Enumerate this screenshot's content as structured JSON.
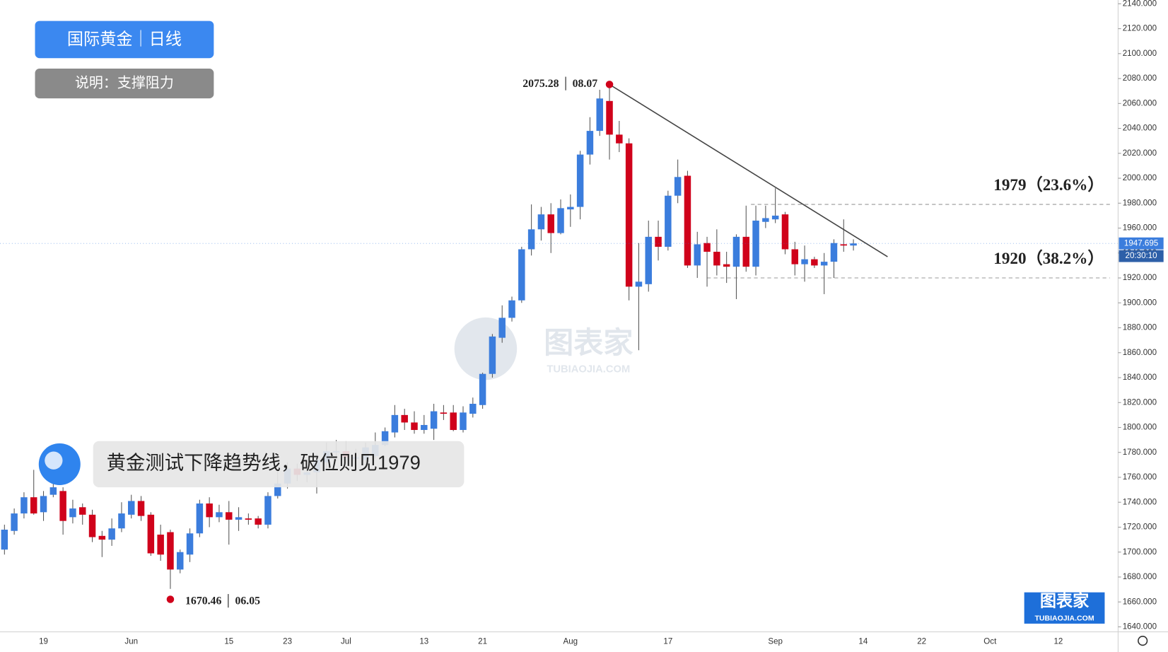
{
  "chart_data": {
    "type": "candlestick",
    "title": "国际黄金｜日线",
    "subtitle": "说明：支撑阻力",
    "annotation": "黄金测试下降趋势线，破位则见1979",
    "high_label": "2075.28 │ 08.07",
    "low_label": "1670.46 │ 06.05",
    "watermark": "图表家",
    "watermark_url": "TUBIAOJIA.COM",
    "last_price": 1947.695,
    "countdown": "20:30:10",
    "up_color": "#3b7ddd",
    "down_color": "#d0021b",
    "categories": [
      null,
      null,
      null,
      null,
      "19",
      null,
      null,
      null,
      null,
      null,
      null,
      null,
      null,
      "Jun",
      null,
      null,
      null,
      null,
      null,
      null,
      null,
      null,
      null,
      "15",
      null,
      null,
      null,
      null,
      null,
      "23",
      null,
      null,
      null,
      null,
      null,
      "Jul",
      null,
      null,
      null,
      null,
      null,
      null,
      null,
      "13",
      null,
      null,
      null,
      null,
      null,
      "21",
      null,
      null,
      null,
      null,
      null,
      null,
      null,
      null,
      "Aug",
      null,
      null,
      null,
      null,
      null,
      null,
      null,
      null,
      null,
      "17",
      null,
      null,
      null,
      null,
      null,
      null,
      null,
      null,
      null,
      null,
      "Sep",
      null,
      null,
      null,
      null,
      null,
      null,
      null,
      null,
      "14",
      null,
      null,
      null,
      null,
      null,
      "22",
      null,
      null,
      null,
      null,
      null,
      null,
      "Oct",
      null,
      null,
      null,
      null,
      null,
      null,
      "12",
      null,
      null,
      null,
      null,
      null,
      null,
      null,
      null,
      null,
      null
    ],
    "open": [
      1702,
      1717,
      1731,
      1744,
      1732,
      1746,
      1749,
      1728,
      1736,
      1730,
      1713,
      1710,
      1719,
      1730,
      1741,
      1730,
      1714,
      1716,
      1686,
      1698,
      1715,
      1739,
      1728,
      1732,
      1726,
      1727,
      1727,
      1722,
      1745,
      1755,
      1767,
      1762,
      1764,
      1772,
      1780,
      1781,
      1775,
      1774,
      1777,
      1786,
      1796,
      1810,
      1804,
      1798,
      1799,
      1812,
      1812,
      1798,
      1811,
      1818,
      1843,
      1872,
      1888,
      1902,
      1943,
      1959,
      1971,
      1956,
      1975,
      1977,
      2019,
      2038,
      2062,
      2035,
      2028,
      1913,
      1915,
      1953,
      1945,
      1986,
      2002,
      1930,
      1948,
      1941,
      1931,
      1929,
      1953,
      1929,
      1965,
      1967,
      1971,
      1943,
      1931,
      1935,
      1930,
      1933,
      1947,
      1946,
      null,
      null,
      null,
      null,
      null,
      null,
      null,
      null,
      null,
      null,
      null,
      null,
      null,
      null,
      null,
      null,
      null,
      null,
      null,
      null,
      null,
      null,
      null,
      null,
      null,
      null,
      null,
      null,
      null,
      null,
      null
    ],
    "high": [
      1722,
      1735,
      1748,
      1766,
      1749,
      1757,
      1752,
      1742,
      1739,
      1734,
      1717,
      1727,
      1740,
      1746,
      1745,
      1732,
      1722,
      1718,
      1702,
      1719,
      1742,
      1744,
      1738,
      1741,
      1736,
      1731,
      1729,
      1748,
      1766,
      1772,
      1771,
      1771,
      1779,
      1788,
      1790,
      1789,
      1783,
      1788,
      1796,
      1800,
      1818,
      1815,
      1813,
      1810,
      1819,
      1818,
      1818,
      1817,
      1824,
      1844,
      1875,
      1898,
      1905,
      1945,
      1979,
      1977,
      1980,
      1983,
      1987,
      2022,
      2049,
      2071,
      2075.28,
      2046,
      2032,
      1948,
      1966,
      1966,
      1990,
      2015,
      2006,
      1957,
      1953,
      1959,
      1941,
      1955,
      1978,
      1978,
      1978,
      1992,
      1973,
      1949,
      1946,
      1937,
      1940,
      1951,
      1967,
      1951,
      null,
      null,
      null,
      null,
      null,
      null,
      null,
      null,
      null,
      null,
      null,
      null,
      null,
      null,
      null,
      null,
      null,
      null,
      null,
      null,
      null,
      null,
      null,
      null,
      null,
      null,
      null,
      null,
      null,
      null,
      null
    ],
    "low": [
      1698,
      1714,
      1727,
      1730,
      1725,
      1744,
      1714,
      1723,
      1722,
      1708,
      1696,
      1705,
      1716,
      1727,
      1725,
      1697,
      1693,
      1670.46,
      1683,
      1692,
      1712,
      1720,
      1724,
      1706,
      1717,
      1722,
      1719,
      1719,
      1743,
      1751,
      1757,
      1756,
      1747,
      1766,
      1773,
      1771,
      1764,
      1770,
      1775,
      1785,
      1792,
      1798,
      1795,
      1795,
      1790,
      1806,
      1797,
      1796,
      1808,
      1815,
      1840,
      1868,
      1885,
      1900,
      1938,
      1950,
      1940,
      1955,
      1961,
      1967,
      2011,
      2034,
      2015,
      2021,
      1902,
      1862,
      1909,
      1934,
      1942,
      1980,
      1928,
      1920,
      1913,
      1922,
      1916,
      1903,
      1925,
      1922,
      1960,
      1964,
      1939,
      1922,
      1917,
      1928,
      1907,
      1920,
      1941,
      1942,
      null,
      null,
      null,
      null,
      null,
      null,
      null,
      null,
      null,
      null,
      null,
      null,
      null,
      null,
      null,
      null,
      null,
      null,
      null,
      null,
      null,
      null,
      null,
      null,
      null,
      null,
      null,
      null,
      null,
      null,
      null
    ],
    "close": [
      1718,
      1731,
      1744,
      1731,
      1745,
      1752,
      1725,
      1735,
      1730,
      1712,
      1710,
      1719,
      1731,
      1741,
      1729,
      1699,
      1698,
      1686,
      1700,
      1715,
      1739,
      1728,
      1732,
      1726,
      1728,
      1726,
      1722,
      1745,
      1755,
      1767,
      1762,
      1764,
      1774,
      1781,
      1781,
      1776,
      1776,
      1784,
      1786,
      1797,
      1810,
      1804,
      1798,
      1802,
      1813,
      1811,
      1798,
      1812,
      1819,
      1843,
      1873,
      1888,
      1902,
      1943,
      1959,
      1971,
      1956,
      1976,
      1977,
      2019,
      2038,
      2064,
      2035,
      2028,
      1913,
      1917,
      1953,
      1945,
      1986,
      2001,
      1930,
      1947,
      1941,
      1930,
      1929,
      1953,
      1929,
      1966,
      1968,
      1970,
      1943,
      1931,
      1935,
      1930,
      1933,
      1948,
      1946,
      1947.695,
      null,
      null,
      null,
      null,
      null,
      null,
      null,
      null,
      null,
      null,
      null,
      null,
      null,
      null,
      null,
      null,
      null,
      null,
      null,
      null,
      null,
      null,
      null,
      null,
      null,
      null,
      null,
      null,
      null,
      null,
      null
    ],
    "levels": [
      {
        "value": 1979,
        "label": "1979（23.6%）"
      },
      {
        "value": 1920,
        "label": "1920（38.2%）"
      }
    ],
    "trendline": {
      "x": [
        62,
        90.5
      ],
      "y": [
        2075.28,
        1937
      ]
    },
    "ylim": [
      1636,
      2143
    ],
    "yticks": [
      {
        "value": 1640,
        "label": "1640.000"
      },
      {
        "value": 1660,
        "label": "1660.000"
      },
      {
        "value": 1680,
        "label": "1680.000"
      },
      {
        "value": 1700,
        "label": "1700.000"
      },
      {
        "value": 1720,
        "label": "1720.000"
      },
      {
        "value": 1740,
        "label": "1740.000"
      },
      {
        "value": 1760,
        "label": "1760.000"
      },
      {
        "value": 1780,
        "label": "1780.000"
      },
      {
        "value": 1800,
        "label": "1800.000"
      },
      {
        "value": 1820,
        "label": "1820.000"
      },
      {
        "value": 1840,
        "label": "1840.000"
      },
      {
        "value": 1860,
        "label": "1860.000"
      },
      {
        "value": 1880,
        "label": "1880.000"
      },
      {
        "value": 1900,
        "label": "1900.000"
      },
      {
        "value": 1920,
        "label": "1920.000"
      },
      {
        "value": 1940,
        "label": "1940.000"
      },
      {
        "value": 1960,
        "label": "1960.000"
      },
      {
        "value": 1980,
        "label": "1980.000"
      },
      {
        "value": 2000,
        "label": "2000.000"
      },
      {
        "value": 2020,
        "label": "2020.000"
      },
      {
        "value": 2040,
        "label": "2040.000"
      },
      {
        "value": 2060,
        "label": "2060.000"
      },
      {
        "value": 2080,
        "label": "2080.000"
      },
      {
        "value": 2100,
        "label": "2100.000"
      },
      {
        "value": 2120,
        "label": "2120.000"
      },
      {
        "value": 2140,
        "label": "2140.000"
      }
    ],
    "grid": false
  }
}
